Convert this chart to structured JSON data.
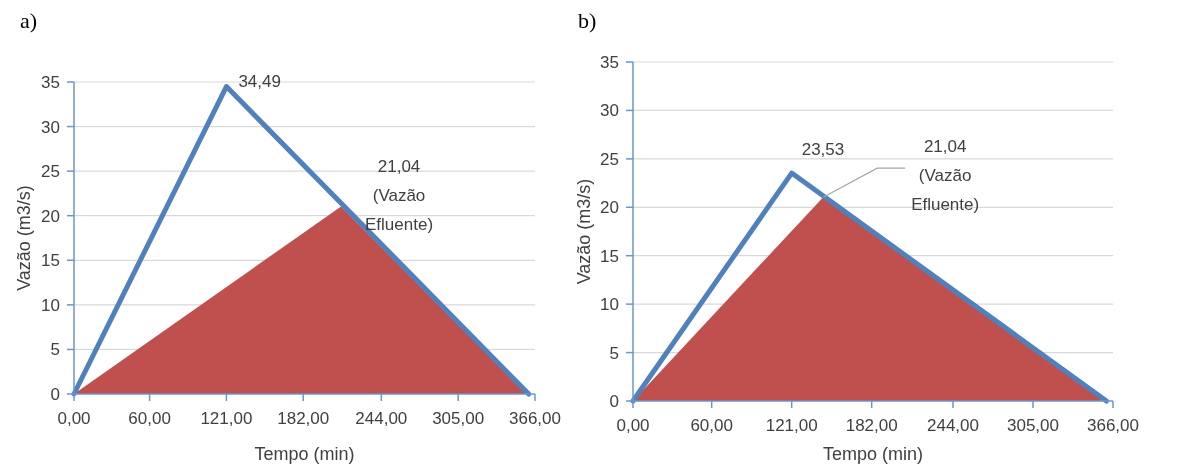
{
  "chart_data": [
    {
      "type": "line",
      "title": "a)",
      "xlabel": "Tempo (min)",
      "ylabel": "Vazão (m3/s)",
      "series": [
        {
          "color": "#4f81bd",
          "x": [
            0,
            121,
            361
          ],
          "values": [
            0,
            34.49,
            0
          ]
        },
        {
          "type": "area",
          "color": "#c0504d",
          "x": [
            0,
            212,
            359
          ],
          "values": [
            0,
            21.04,
            0
          ]
        }
      ],
      "xlim": [
        0,
        366
      ],
      "xticks": [
        {
          "value": 0,
          "label": "0,00"
        },
        {
          "value": 60,
          "label": "60,00"
        },
        {
          "value": 121,
          "label": "121,00"
        },
        {
          "value": 182,
          "label": "182,00"
        },
        {
          "value": 244,
          "label": "244,00"
        },
        {
          "value": 305,
          "label": "305,00"
        },
        {
          "value": 366,
          "label": "366,00"
        }
      ],
      "ylim": [
        0,
        35
      ],
      "yticks": [
        0,
        5,
        10,
        15,
        20,
        25,
        30,
        35
      ],
      "grid": "y",
      "annotations": [
        {
          "text": "34,49",
          "x": 121,
          "y": 34.49
        },
        {
          "text": "21,04\n(Vazão\nEfluente)",
          "x": 212,
          "y": 21.04
        }
      ]
    },
    {
      "type": "line",
      "title": "b)",
      "xlabel": "Tempo (min)",
      "ylabel": "Vazão (m3/s)",
      "series": [
        {
          "color": "#4f81bd",
          "x": [
            0,
            121,
            361
          ],
          "values": [
            0,
            23.53,
            0
          ]
        },
        {
          "type": "area",
          "color": "#c0504d",
          "x": [
            0,
            145,
            359
          ],
          "values": [
            0,
            21.04,
            0
          ]
        }
      ],
      "xlim": [
        0,
        366
      ],
      "xticks": [
        {
          "value": 0,
          "label": "0,00"
        },
        {
          "value": 60,
          "label": "60,00"
        },
        {
          "value": 121,
          "label": "121,00"
        },
        {
          "value": 182,
          "label": "182,00"
        },
        {
          "value": 244,
          "label": "244,00"
        },
        {
          "value": 305,
          "label": "305,00"
        },
        {
          "value": 366,
          "label": "366,00"
        }
      ],
      "ylim": [
        0,
        35
      ],
      "yticks": [
        0,
        5,
        10,
        15,
        20,
        25,
        30,
        35
      ],
      "grid": "y",
      "annotations": [
        {
          "text": "23,53",
          "x": 121,
          "y": 23.53
        },
        {
          "text": "21,04\n(Vazão\nEfluente)",
          "x": 145,
          "y": 21.04
        }
      ]
    }
  ]
}
